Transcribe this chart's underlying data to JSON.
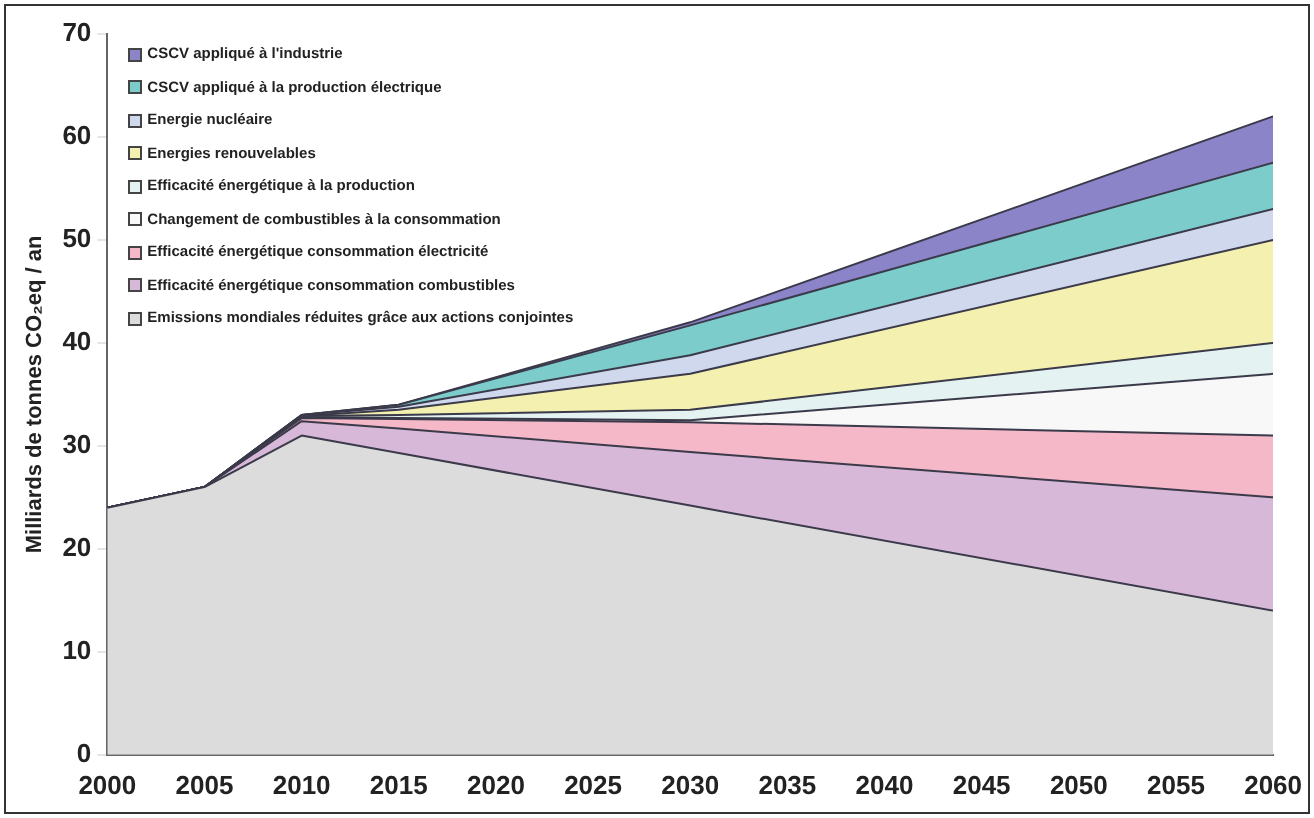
{
  "chart_data": {
    "type": "area",
    "stacked": true,
    "ylabel": "Milliards de tonnes CO₂eq / an",
    "x": [
      2000,
      2005,
      2010,
      2015,
      2030,
      2060
    ],
    "xlim": [
      2000,
      2060
    ],
    "xticks": [
      2000,
      2005,
      2010,
      2015,
      2020,
      2025,
      2030,
      2035,
      2040,
      2045,
      2050,
      2055,
      2060
    ],
    "ylim": [
      0,
      70
    ],
    "yticks": [
      0,
      10,
      20,
      30,
      40,
      50,
      60,
      70
    ],
    "grid": false,
    "legend": "top left",
    "series": [
      {
        "name": "Emissions mondiales réduites grâce aux actions conjointes",
        "color": "#dcdcdc",
        "values": [
          24,
          26,
          31,
          29.3,
          24.2,
          14
        ]
      },
      {
        "name": "Efficacité énergétique consommation combustibles",
        "color": "#d8b8d8",
        "values": [
          0,
          0,
          1.4,
          2.4,
          5.2,
          11
        ]
      },
      {
        "name": "Efficacité énergétique consommation électricité",
        "color": "#f4b8c8",
        "values": [
          0,
          0,
          0.3,
          0.9,
          2.9,
          6
        ]
      },
      {
        "name": "Changement de combustibles à la consommation",
        "color": "#f8f8f8",
        "values": [
          0,
          0,
          0.1,
          0.1,
          0.2,
          6
        ]
      },
      {
        "name": "Efficacité énergétique à la production",
        "color": "#e4f2f2",
        "values": [
          0,
          0,
          0.1,
          0.3,
          1,
          3
        ]
      },
      {
        "name": "Energies renouvelables",
        "color": "#f4f0b0",
        "values": [
          0,
          0,
          0,
          0.5,
          3.5,
          10
        ]
      },
      {
        "name": "Energie nucléaire",
        "color": "#cfd8ec",
        "values": [
          0,
          0,
          0.1,
          0.3,
          1.8,
          3
        ]
      },
      {
        "name": "CSCV appliqué à la production électrique",
        "color": "#7ccccc",
        "values": [
          0,
          0,
          0,
          0.2,
          2.9,
          4.5
        ]
      },
      {
        "name": "CSCV appliqué à l'industrie",
        "color": "#8c84c8",
        "values": [
          0,
          0,
          0,
          0,
          0.3,
          4.5
        ]
      }
    ]
  }
}
